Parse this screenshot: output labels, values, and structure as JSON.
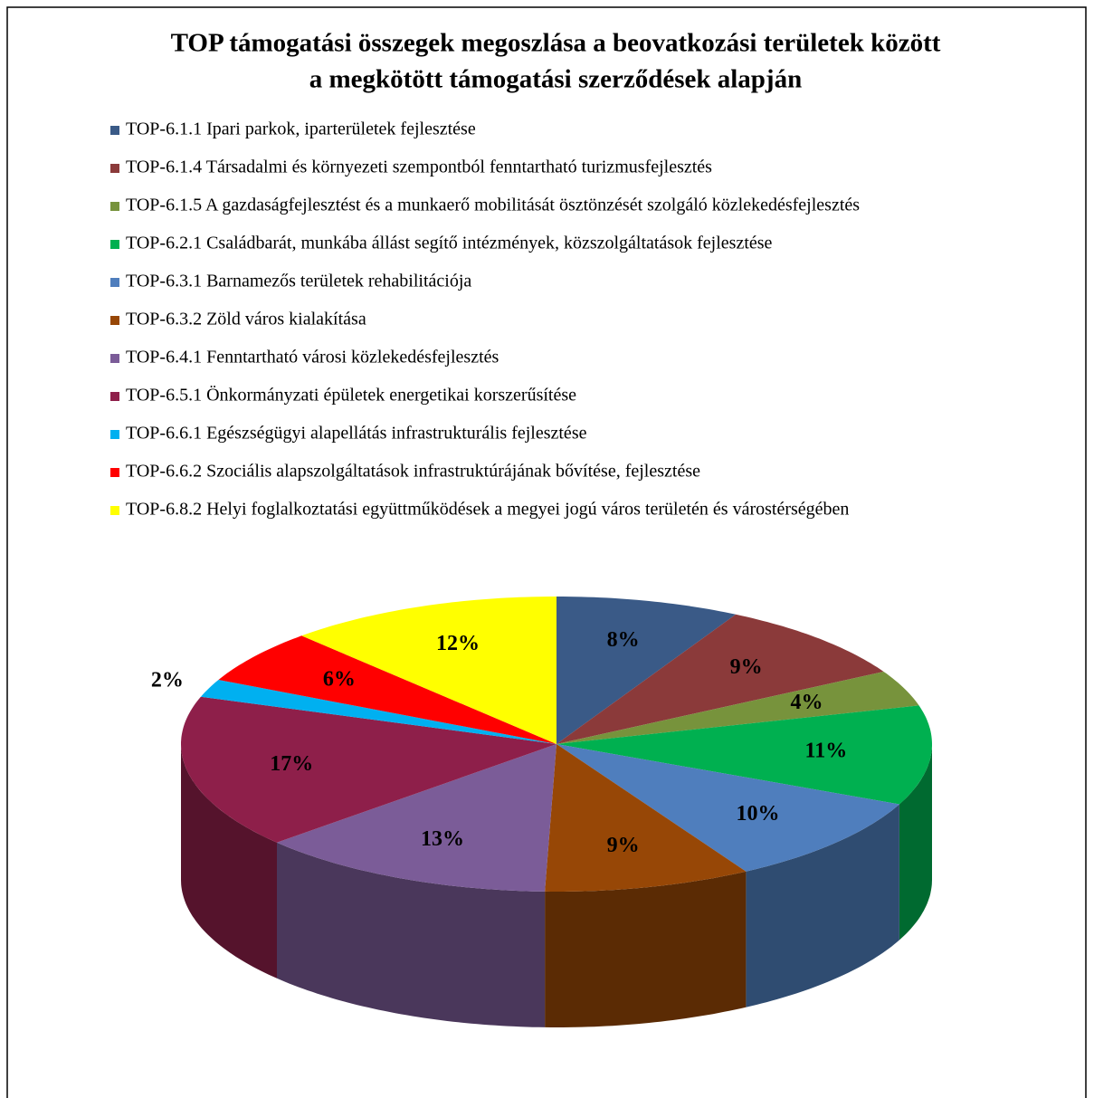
{
  "chart_data": {
    "type": "pie3d",
    "title": [
      "TOP támogatási összegek megoszlása a beovatkozási területek között",
      "a megkötött támogatási szerződések alapján"
    ],
    "categories": [
      "TOP-6.1.1 Ipari parkok, iparterületek fejlesztése",
      "TOP-6.1.4 Társadalmi és környezeti szempontból fenntartható turizmusfejlesztés",
      "TOP-6.1.5 A gazdaságfejlesztést és a munkaerő mobilitását ösztönzését szolgáló közlekedésfejlesztés",
      "TOP-6.2.1 Családbarát, munkába állást segítő intézmények, közszolgáltatások fejlesztése",
      "TOP-6.3.1 Barnamezős területek rehabilitációja",
      "TOP-6.3.2 Zöld város kialakítása",
      "TOP-6.4.1 Fenntartható városi közlekedésfejlesztés",
      "TOP-6.5.1 Önkormányzati épületek energetikai korszerűsítése",
      "TOP-6.6.1 Egészségügyi alapellátás infrastrukturális fejlesztése",
      "TOP-6.6.2 Szociális alapszolgáltatások infrastruktúrájának bővítése, fejlesztése",
      "TOP-6.8.2 Helyi foglalkoztatási együttműködések a megyei jogú város területén és várostérségében"
    ],
    "values": [
      8,
      9,
      4,
      11,
      10,
      9,
      13,
      17,
      2,
      6,
      12
    ],
    "value_labels": [
      "8%",
      "9%",
      "4%",
      "11%",
      "10%",
      "9%",
      "13%",
      "17%",
      "2%",
      "6%",
      "12%"
    ],
    "colors": [
      "#3a5a87",
      "#8b3a3a",
      "#77933c",
      "#00b050",
      "#4f7ebd",
      "#974706",
      "#7b5c98",
      "#8e1f4a",
      "#00b0f0",
      "#ff0000",
      "#ffff00"
    ],
    "legend": "top"
  }
}
